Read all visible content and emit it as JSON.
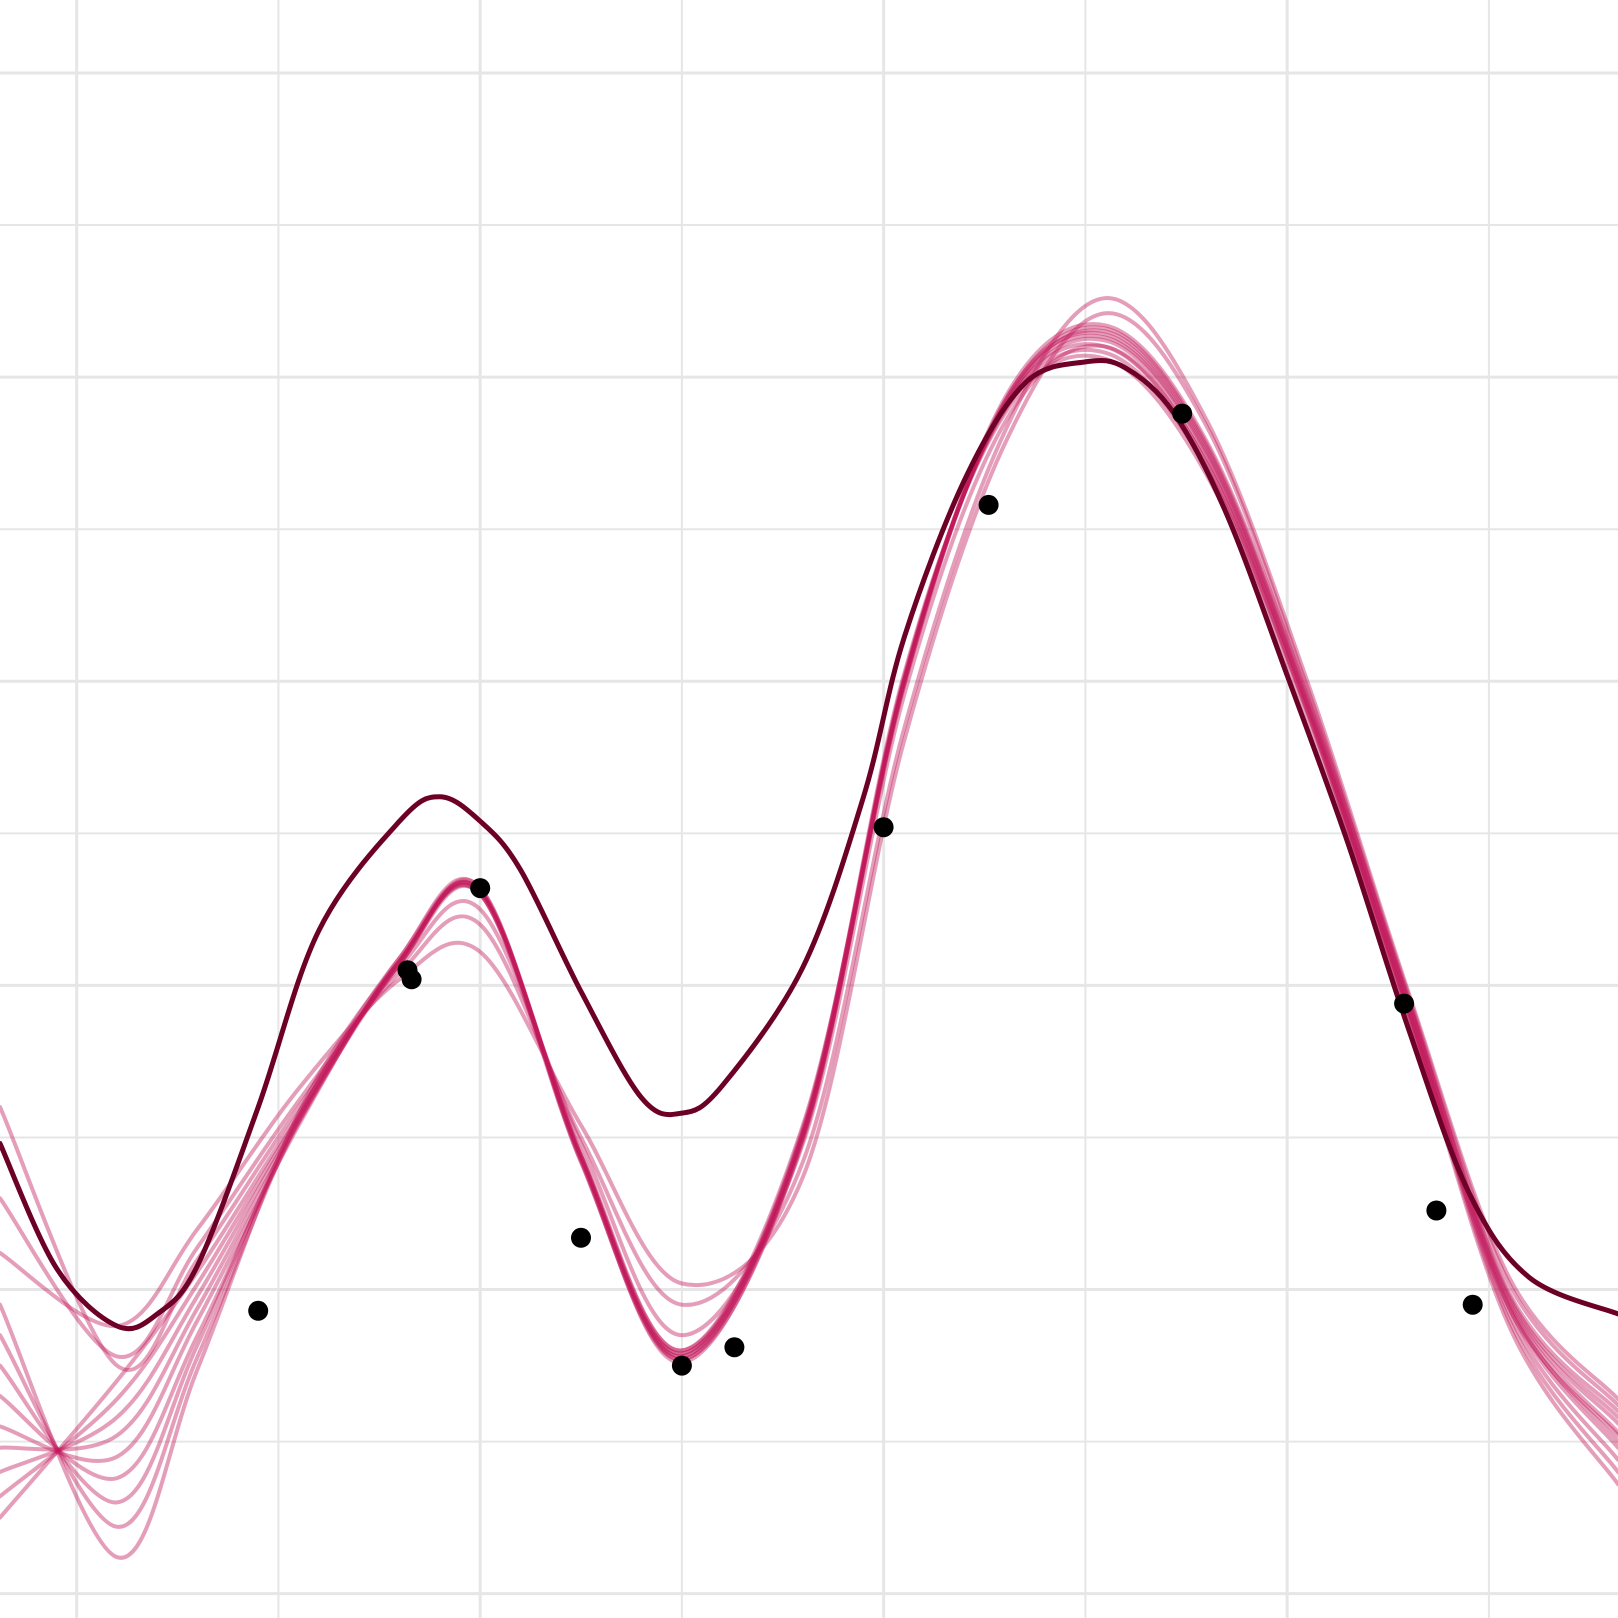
{
  "chart_data": {
    "type": "line",
    "title": "",
    "xlabel": "",
    "ylabel": "",
    "xlim": [
      -0.19,
      3.82
    ],
    "ylim": [
      -2.08,
      3.24
    ],
    "grid": true,
    "legend": "none",
    "colors": {
      "grid": "#e6e6e6",
      "background": "#ffffff",
      "sample_curve": "#c2185b",
      "mean_curve": "#6d0026",
      "points": "#000000"
    },
    "points": {
      "name": "",
      "x": [
        0.45,
        0.82,
        0.83,
        1.0,
        1.25,
        1.5,
        1.63,
        2.0,
        2.26,
        2.74,
        3.29,
        3.37,
        3.46
      ],
      "y": [
        -1.07,
        0.05,
        0.02,
        0.32,
        -0.83,
        -1.25,
        -1.19,
        0.52,
        1.58,
        1.88,
        -0.06,
        -0.74,
        -1.05
      ]
    },
    "samples": [
      {
        "x": [
          -0.19,
          0.1,
          0.3,
          0.55,
          0.8,
          1.0,
          1.25,
          1.5,
          1.8,
          2.05,
          2.3,
          2.55,
          2.8,
          3.05,
          3.3,
          3.55,
          3.82
        ],
        "y": [
          -1.05,
          -1.88,
          -1.26,
          -0.42,
          0.08,
          0.3,
          -0.56,
          -1.2,
          -0.48,
          1.02,
          1.88,
          2.06,
          1.68,
          0.88,
          -0.1,
          -1.12,
          -1.64
        ]
      },
      {
        "x": [
          -0.19,
          0.1,
          0.3,
          0.55,
          0.8,
          1.0,
          1.25,
          1.5,
          1.8,
          2.05,
          2.3,
          2.55,
          2.8,
          3.05,
          3.3,
          3.55,
          3.82
        ],
        "y": [
          -1.15,
          -1.78,
          -1.22,
          -0.44,
          0.09,
          0.31,
          -0.57,
          -1.21,
          -0.49,
          1.01,
          1.89,
          2.08,
          1.7,
          0.9,
          -0.09,
          -1.1,
          -1.6
        ]
      },
      {
        "x": [
          -0.19,
          0.1,
          0.3,
          0.55,
          0.8,
          1.0,
          1.25,
          1.5,
          1.8,
          2.05,
          2.3,
          2.55,
          2.8,
          3.05,
          3.3,
          3.55,
          3.82
        ],
        "y": [
          -1.25,
          -1.7,
          -1.18,
          -0.43,
          0.07,
          0.32,
          -0.58,
          -1.22,
          -0.5,
          1.0,
          1.9,
          2.1,
          1.72,
          0.91,
          -0.08,
          -1.08,
          -1.56
        ]
      },
      {
        "x": [
          -0.19,
          0.1,
          0.3,
          0.55,
          0.8,
          1.0,
          1.25,
          1.5,
          1.8,
          2.05,
          2.3,
          2.55,
          2.8,
          3.05,
          3.3,
          3.55,
          3.82
        ],
        "y": [
          -1.35,
          -1.62,
          -1.15,
          -0.45,
          0.08,
          0.31,
          -0.56,
          -1.23,
          -0.51,
          1.0,
          1.9,
          2.12,
          1.74,
          0.92,
          -0.07,
          -1.06,
          -1.52
        ]
      },
      {
        "x": [
          -0.19,
          0.1,
          0.3,
          0.55,
          0.8,
          1.0,
          1.25,
          1.5,
          1.8,
          2.05,
          2.3,
          2.55,
          2.8,
          3.05,
          3.3,
          3.55,
          3.82
        ],
        "y": [
          -1.45,
          -1.55,
          -1.1,
          -0.46,
          0.09,
          0.32,
          -0.57,
          -1.24,
          -0.5,
          0.99,
          1.91,
          2.13,
          1.75,
          0.92,
          -0.08,
          -1.05,
          -1.5
        ]
      },
      {
        "x": [
          -0.19,
          0.1,
          0.3,
          0.55,
          0.8,
          1.0,
          1.25,
          1.5,
          1.8,
          2.05,
          2.3,
          2.55,
          2.8,
          3.05,
          3.3,
          3.55,
          3.82
        ],
        "y": [
          -1.52,
          -1.48,
          -1.06,
          -0.45,
          0.08,
          0.3,
          -0.58,
          -1.23,
          -0.49,
          0.98,
          1.92,
          2.14,
          1.76,
          0.93,
          -0.06,
          -1.04,
          -1.47
        ]
      },
      {
        "x": [
          -0.19,
          0.1,
          0.3,
          0.55,
          0.8,
          1.0,
          1.25,
          1.5,
          1.8,
          2.05,
          2.3,
          2.55,
          2.8,
          3.05,
          3.3,
          3.55,
          3.82
        ],
        "y": [
          -1.6,
          -1.42,
          -1.02,
          -0.44,
          0.07,
          0.31,
          -0.57,
          -1.22,
          -0.48,
          0.99,
          1.91,
          2.15,
          1.77,
          0.94,
          -0.05,
          -1.03,
          -1.44
        ]
      },
      {
        "x": [
          -0.19,
          0.1,
          0.3,
          0.55,
          0.8,
          1.0,
          1.25,
          1.5,
          1.8,
          2.05,
          2.3,
          2.55,
          2.8,
          3.05,
          3.3,
          3.55,
          3.82
        ],
        "y": [
          -1.68,
          -1.36,
          -0.98,
          -0.43,
          0.08,
          0.31,
          -0.56,
          -1.21,
          -0.47,
          1.0,
          1.92,
          2.16,
          1.78,
          0.95,
          -0.04,
          -1.02,
          -1.42
        ]
      },
      {
        "x": [
          -0.19,
          0.1,
          0.3,
          0.55,
          0.8,
          1.0,
          1.25,
          1.5,
          1.8,
          2.05,
          2.3,
          2.55,
          2.8,
          3.05,
          3.3,
          3.55,
          3.82
        ],
        "y": [
          -1.75,
          -1.3,
          -0.94,
          -0.42,
          0.07,
          0.3,
          -0.55,
          -1.2,
          -0.46,
          0.99,
          1.93,
          2.17,
          1.79,
          0.96,
          -0.05,
          -1.01,
          -1.4
        ]
      },
      {
        "x": [
          -0.19,
          0.1,
          0.3,
          0.55,
          0.8,
          1.0,
          1.25,
          1.5,
          1.8,
          2.05,
          2.3,
          2.55,
          2.8,
          3.05,
          3.3,
          3.55,
          3.82
        ],
        "y": [
          -0.7,
          -1.22,
          -0.86,
          -0.38,
          0.04,
          0.2,
          -0.5,
          -1.05,
          -0.58,
          0.84,
          1.82,
          2.26,
          1.86,
          1.0,
          -0.02,
          -0.96,
          -1.36
        ]
      },
      {
        "x": [
          -0.19,
          0.1,
          0.3,
          0.55,
          0.8,
          1.0,
          1.25,
          1.5,
          1.8,
          2.05,
          2.3,
          2.55,
          2.8,
          3.05,
          3.3,
          3.55,
          3.82
        ],
        "y": [
          -0.88,
          -1.12,
          -0.8,
          -0.34,
          0.02,
          0.11,
          -0.46,
          -0.98,
          -0.63,
          0.8,
          1.78,
          2.21,
          1.84,
          0.98,
          -0.03,
          -0.98,
          -1.38
        ]
      },
      {
        "x": [
          -0.19,
          0.1,
          0.3,
          0.55,
          0.8,
          1.0,
          1.25,
          1.5,
          1.8,
          2.05,
          2.3,
          2.55,
          2.8,
          3.05,
          3.3,
          3.55,
          3.82
        ],
        "y": [
          -0.4,
          -1.25,
          -0.9,
          -0.4,
          0.06,
          0.25,
          -0.52,
          -1.15,
          -0.52,
          0.95,
          1.85,
          2.1,
          1.72,
          0.9,
          -0.1,
          -1.06,
          -1.48
        ]
      }
    ],
    "mean": {
      "x": [
        -0.19,
        -0.05,
        0.1,
        0.2,
        0.3,
        0.45,
        0.6,
        0.8,
        0.9,
        1.0,
        1.1,
        1.25,
        1.4,
        1.5,
        1.6,
        1.8,
        1.95,
        2.05,
        2.2,
        2.35,
        2.5,
        2.6,
        2.72,
        2.85,
        3.0,
        3.15,
        3.3,
        3.45,
        3.6,
        3.82
      ],
      "y": [
        -0.52,
        -0.93,
        -1.12,
        -1.08,
        -0.92,
        -0.4,
        0.18,
        0.54,
        0.62,
        0.54,
        0.38,
        -0.02,
        -0.37,
        -0.42,
        -0.33,
        0.06,
        0.62,
        1.14,
        1.66,
        1.98,
        2.05,
        2.03,
        1.88,
        1.55,
        1.02,
        0.47,
        -0.14,
        -0.68,
        -0.96,
        -1.08
      ]
    }
  }
}
